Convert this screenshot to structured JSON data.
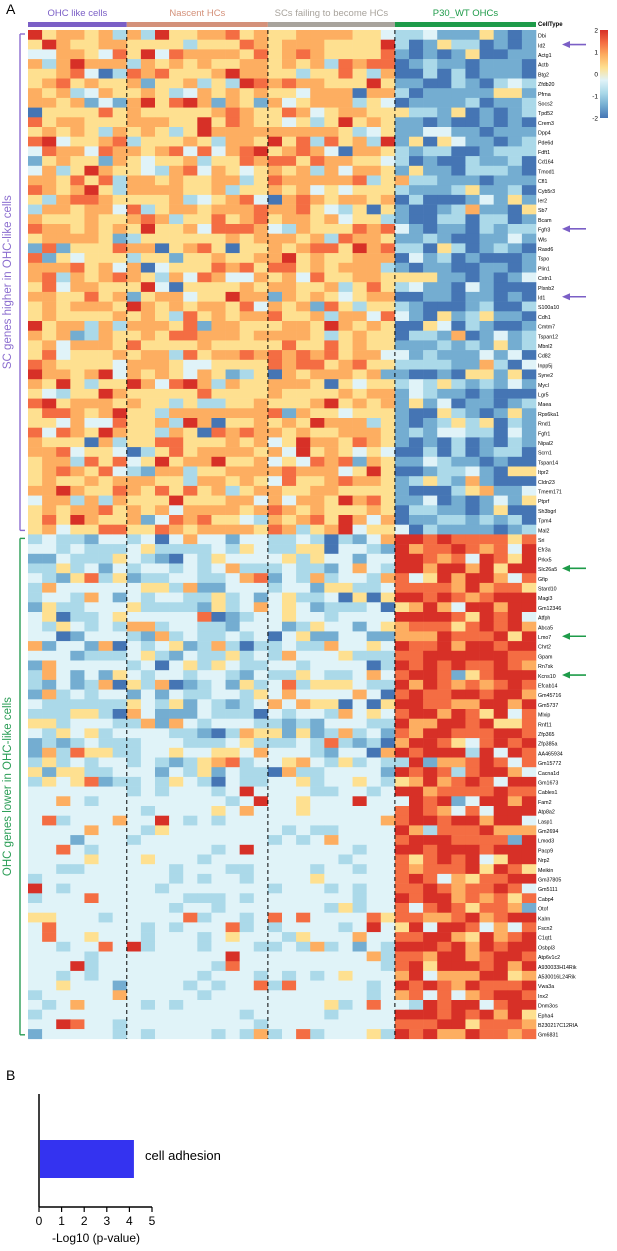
{
  "panels": {
    "a": "A",
    "b": "B"
  },
  "chart_data": [
    {
      "type": "heatmap",
      "column_groups": [
        {
          "name": "OHC like cells",
          "color": "#7b5fc6"
        },
        {
          "name": "Nascent HCs",
          "color": "#d4917a"
        },
        {
          "name": "SCs failing to become HCs",
          "color": "#a8a39c"
        },
        {
          "name": "P30_WT OHCs",
          "color": "#1e9b49"
        }
      ],
      "annotation_label": "CellType",
      "row_groups": [
        {
          "name": "SC genes higher in OHC-like cells",
          "color": "#8b6dcf"
        },
        {
          "name": "OHC genes lower in OHC-like cells",
          "color": "#2a9d55"
        }
      ],
      "genes_sc_higher": [
        "Dbi",
        "Id2",
        "Actg1",
        "Actb",
        "Btg2",
        "Zfdb20",
        "Pfrna",
        "Socs2",
        "Tpd52",
        "Crem3",
        "Dpp4",
        "Pde6d",
        "Fdft1",
        "Cd164",
        "Tmod1",
        "Cfl1",
        "Cyb5r3",
        "Ier2",
        "Sb7",
        "Bcam",
        "Fgfr3",
        "Wls",
        "Rasd6",
        "Tspo",
        "Plin1",
        "Cstn1",
        "Plxnb2",
        "Id1",
        "S100a10",
        "Cdh1",
        "Cmtm7",
        "Tspan12",
        "Mbnl2",
        "Cd82",
        "Inpp5j",
        "Syne2",
        "Mycl",
        "Lgr5",
        "Maea",
        "Rps6ka1",
        "Rnd1",
        "Fgfr1",
        "Nipal2",
        "Scrn1",
        "Tspan14",
        "Itpr2",
        "Cldn23",
        "Tmem171",
        "Ptprf",
        "Sh3bgrl",
        "Tpm4",
        "Mal2"
      ],
      "genes_ohc_lower": [
        "Sri",
        "Efr3a",
        "Prkx5",
        "Slc26a5",
        "Gfip",
        "Stard10",
        "Magi3",
        "Gm12346",
        "Atfph",
        "Abca5",
        "Lmo7",
        "Chrt2",
        "Gpam",
        "Rn7sk",
        "Kcns10",
        "Efcab14",
        "Gm45716",
        "Gm5737",
        "Mlxip",
        "Rnf11",
        "Zfp365",
        "Zfp385a",
        "AA465934",
        "Gm15772",
        "Cacna1d",
        "Gm1673",
        "Cables1",
        "Fam2",
        "Atp8a2",
        "Lasp1",
        "Gm2694",
        "Lmod3",
        "Pacp9",
        "Nrp2",
        "Meikin",
        "Gm37805",
        "Gm5111",
        "Cabp4",
        "Otof",
        "Kalrn",
        "Fscn2",
        "C1qt1",
        "Osbpl3",
        "Atp6v1c2",
        "A930033H14Rik",
        "A530016L24Rik",
        "Vwa3a",
        "Inx2",
        "Dnm3os",
        "Epha4",
        "B230217C12RIA",
        "Gm6831"
      ],
      "arrows": [
        {
          "gene": "Id2",
          "color": "#7b5fc6"
        },
        {
          "gene": "Fgfr3",
          "color": "#7b5fc6"
        },
        {
          "gene": "Id1",
          "color": "#7b5fc6"
        },
        {
          "gene": "Slc26a5",
          "color": "#1e9b49"
        },
        {
          "gene": "Lmo7",
          "color": "#1e9b49"
        },
        {
          "gene": "Kcns10",
          "color": "#1e9b49"
        }
      ],
      "colorbar": {
        "ticks": [
          "2",
          "1",
          "0",
          "-1",
          "-2"
        ],
        "colors": [
          "#d73027",
          "#f46d43",
          "#fdae61",
          "#fee090",
          "#e0f3f8",
          "#abd9e9",
          "#74add1",
          "#4575b4"
        ]
      }
    },
    {
      "type": "bar",
      "orientation": "horizontal",
      "categories": [
        "cell adhesion"
      ],
      "values": [
        4.2
      ],
      "bar_color": "#3433f0",
      "xlabel": "-Log10 (p-value)",
      "xlim": [
        0,
        5
      ],
      "xticks": [
        "0",
        "1",
        "2",
        "3",
        "4",
        "5"
      ]
    }
  ]
}
